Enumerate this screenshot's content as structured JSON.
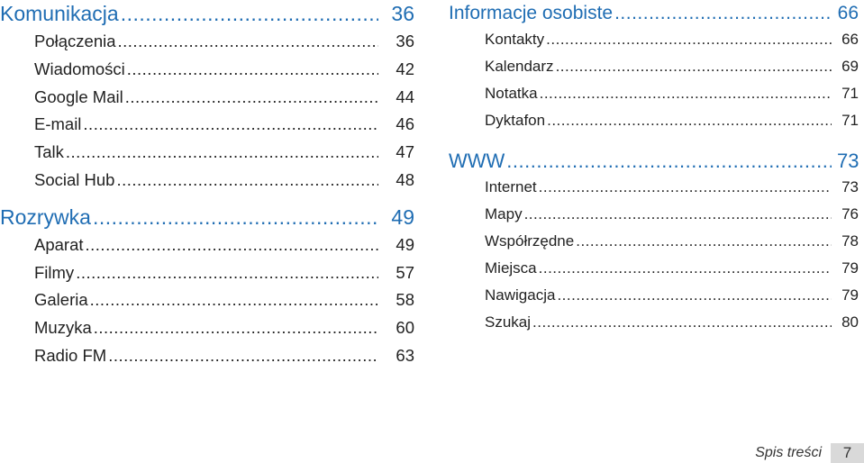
{
  "left_column": {
    "sections": [
      {
        "title": "Komunikacja",
        "page": "36",
        "items": [
          {
            "label": "Połączenia",
            "page": "36"
          },
          {
            "label": "Wiadomości",
            "page": "42"
          },
          {
            "label": "Google Mail",
            "page": "44"
          },
          {
            "label": "E-mail",
            "page": "46"
          },
          {
            "label": "Talk",
            "page": "47"
          },
          {
            "label": "Social Hub",
            "page": "48"
          }
        ]
      },
      {
        "title": "Rozrywka",
        "page": "49",
        "items": [
          {
            "label": "Aparat",
            "page": "49"
          },
          {
            "label": "Filmy",
            "page": "57"
          },
          {
            "label": "Galeria",
            "page": "58"
          },
          {
            "label": "Muzyka",
            "page": "60"
          },
          {
            "label": "Radio FM",
            "page": "63"
          }
        ]
      }
    ]
  },
  "right_column": {
    "sections": [
      {
        "title": "Informacje osobiste",
        "page": "66",
        "items": [
          {
            "label": "Kontakty",
            "page": "66"
          },
          {
            "label": "Kalendarz",
            "page": "69"
          },
          {
            "label": "Notatka",
            "page": "71"
          },
          {
            "label": "Dyktafon",
            "page": "71"
          }
        ]
      },
      {
        "title": "WWW",
        "page": "73",
        "items": [
          {
            "label": "Internet",
            "page": "73"
          },
          {
            "label": "Mapy",
            "page": "76"
          },
          {
            "label": "Współrzędne",
            "page": "78"
          },
          {
            "label": "Miejsca",
            "page": "79"
          },
          {
            "label": "Nawigacja",
            "page": "79"
          },
          {
            "label": "Szukaj",
            "page": "80"
          }
        ]
      }
    ]
  },
  "footer": {
    "label": "Spis treści",
    "page_number": "7"
  },
  "colors": {
    "section_heading": "#1f6db3",
    "body_text": "#222222",
    "page_box": "#d9d9d9"
  }
}
